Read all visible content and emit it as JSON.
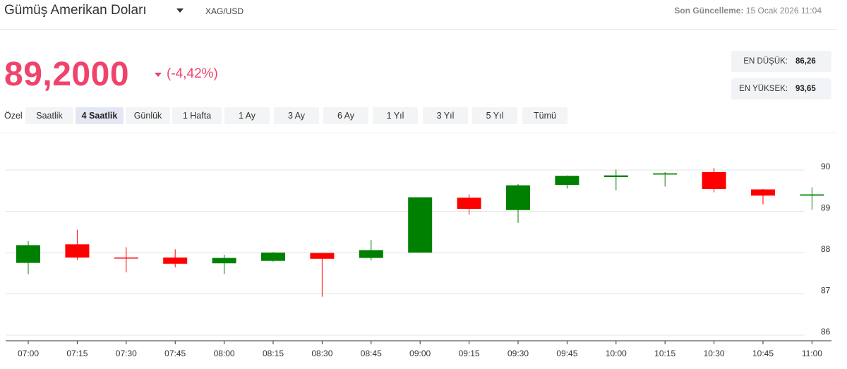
{
  "header": {
    "asset_name": "Gümüş Amerikan Doları",
    "symbol": "XAG/USD",
    "updated_label": "Son Güncelleme:",
    "updated_value": "15 Ocak 2026 11:04"
  },
  "quote": {
    "price": "89,2000",
    "change": "(-4,42%)",
    "direction": "down",
    "color": "#f0436c"
  },
  "stats": {
    "low_label": "EN DÜŞÜK:",
    "low_value": "86,26",
    "high_label": "EN YÜKSEK:",
    "high_value": "93,65"
  },
  "ranges": {
    "items": [
      "Özel",
      "Saatlik",
      "4 Saatlik",
      "Günlük",
      "1 Hafta",
      "1 Ay",
      "3 Ay",
      "6 Ay",
      "1 Yıl",
      "3 Yıl",
      "5 Yıl",
      "Tümü"
    ],
    "active": "4 Saatlik"
  },
  "chart_data": {
    "type": "candlestick",
    "up_color": "#008000",
    "down_color": "#ff0000",
    "y_range": [
      86,
      90.3
    ],
    "y_ticks": [
      86,
      87,
      88,
      89,
      90
    ],
    "x": [
      "07:00",
      "07:15",
      "07:30",
      "07:45",
      "08:00",
      "08:15",
      "08:30",
      "08:45",
      "09:00",
      "09:15",
      "09:30",
      "09:45",
      "10:00",
      "10:15",
      "10:30",
      "10:45",
      "11:00"
    ],
    "candles": [
      {
        "o": 87.75,
        "h": 88.28,
        "l": 87.48,
        "c": 88.18
      },
      {
        "o": 88.2,
        "h": 88.55,
        "l": 87.82,
        "c": 87.88
      },
      {
        "o": 87.88,
        "h": 88.13,
        "l": 87.52,
        "c": 87.86
      },
      {
        "o": 87.88,
        "h": 88.08,
        "l": 87.64,
        "c": 87.73
      },
      {
        "o": 87.74,
        "h": 87.95,
        "l": 87.48,
        "c": 87.87
      },
      {
        "o": 87.8,
        "h": 88.01,
        "l": 87.78,
        "c": 88.0
      },
      {
        "o": 87.99,
        "h": 87.99,
        "l": 86.93,
        "c": 87.85
      },
      {
        "o": 87.87,
        "h": 88.31,
        "l": 87.81,
        "c": 88.06
      },
      {
        "o": 88.0,
        "h": 89.34,
        "l": 88.0,
        "c": 89.34
      },
      {
        "o": 89.33,
        "h": 89.41,
        "l": 88.92,
        "c": 89.06
      },
      {
        "o": 89.03,
        "h": 89.66,
        "l": 88.72,
        "c": 89.63
      },
      {
        "o": 89.64,
        "h": 89.87,
        "l": 89.55,
        "c": 89.86
      },
      {
        "o": 89.83,
        "h": 90.01,
        "l": 89.51,
        "c": 89.87
      },
      {
        "o": 89.89,
        "h": 89.95,
        "l": 89.6,
        "c": 89.92
      },
      {
        "o": 89.95,
        "h": 90.05,
        "l": 89.46,
        "c": 89.54
      },
      {
        "o": 89.53,
        "h": 89.54,
        "l": 89.17,
        "c": 89.38
      },
      {
        "o": 89.38,
        "h": 89.58,
        "l": 89.04,
        "c": 89.41
      }
    ]
  }
}
